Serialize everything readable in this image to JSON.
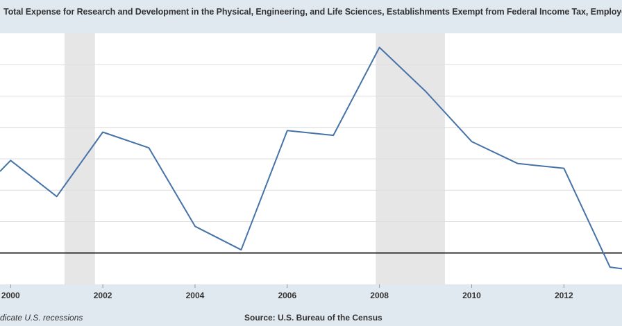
{
  "header": {
    "title": "Total Expense for Research and Development in the Physical, Engineering, and Life Sciences, Establishments Exempt from Federal Income Tax, Employer Fi"
  },
  "footer": {
    "recession_note": "dicate U.S. recessions",
    "source": "Source: U.S. Bureau of the Census"
  },
  "colors": {
    "line": "#4572a7",
    "recession": "#e6e6e6",
    "grid": "#dddddd",
    "zero_line": "#000000",
    "background": "#e1e9f0",
    "plot_background": "#ffffff"
  },
  "chart_data": {
    "type": "line",
    "title": "Total Expense for Research and Development in the Physical, Engineering, and Life Sciences, Establishments Exempt from Federal Income Tax, Employer Fi",
    "xlabel": "",
    "ylabel": "",
    "x_ticks": [
      "2000",
      "2002",
      "2004",
      "2006",
      "2008",
      "2010",
      "2012"
    ],
    "xlim": [
      1999.77,
      2013.26
    ],
    "ylim": [
      -1.0,
      7.0
    ],
    "y_ticks_unlabeled": [
      0,
      1,
      2,
      3,
      4,
      5,
      6
    ],
    "grid": true,
    "recessions": [
      [
        2001.17,
        2001.83
      ],
      [
        2007.92,
        2009.42
      ]
    ],
    "series": [
      {
        "x": [
          1999.77,
          2000,
          2001,
          2002,
          2003,
          2004,
          2005,
          2006,
          2007,
          2008,
          2009,
          2010,
          2011,
          2012,
          2013,
          2013.26
        ],
        "values": [
          2.6,
          2.95,
          1.8,
          3.85,
          3.35,
          0.85,
          0.1,
          3.9,
          3.75,
          6.55,
          5.15,
          3.55,
          2.85,
          2.7,
          -0.45,
          -0.5
        ]
      }
    ]
  }
}
